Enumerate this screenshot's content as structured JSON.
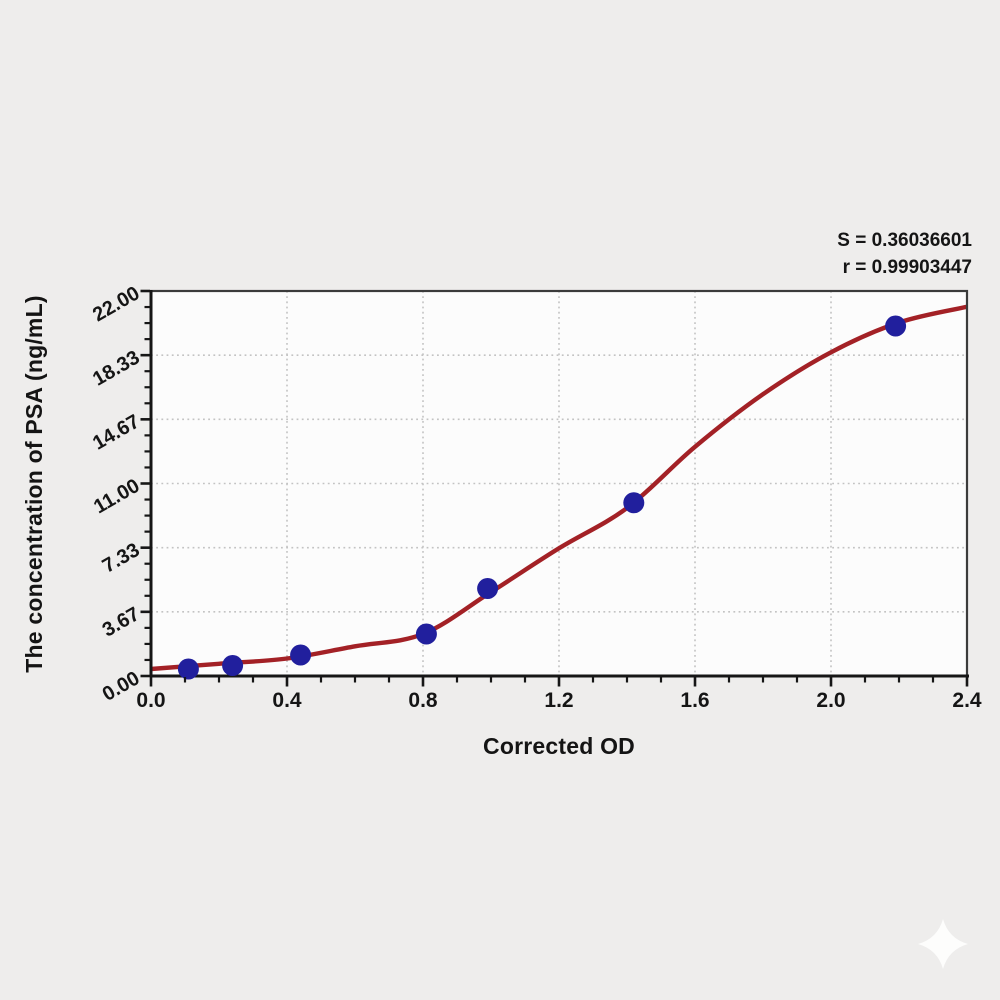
{
  "page": {
    "background_color": "#eeedec"
  },
  "annotation": {
    "s_label": "S = 0.36036601",
    "r_label": "r = 0.99903447"
  },
  "watermark": {
    "icon": "four-point-star-icon",
    "color": "#ffffff"
  },
  "chart_data": {
    "type": "scatter",
    "title": "",
    "xlabel": "Corrected OD",
    "ylabel": "The concentration of PSA (ng/mL)",
    "xlim": [
      0,
      2.4
    ],
    "ylim": [
      0,
      22
    ],
    "x_tick_labels": [
      "0.0",
      "0.4",
      "0.8",
      "1.2",
      "1.6",
      "2.0",
      "2.4"
    ],
    "x_tick_values": [
      0,
      0.4,
      0.8,
      1.2,
      1.6,
      2.0,
      2.4
    ],
    "x_minor_step": 0.1,
    "y_tick_labels": [
      "0.00",
      "3.67",
      "7.33",
      "11.00",
      "14.67",
      "18.33",
      "22.00"
    ],
    "y_tick_values": [
      0,
      3.67,
      7.33,
      11.0,
      14.67,
      18.33,
      22.0
    ],
    "y_minor_divisions": 4,
    "grid": {
      "show": true,
      "style": "dotted"
    },
    "legend": null,
    "points": [
      {
        "x": 0.11,
        "y": 0.4
      },
      {
        "x": 0.24,
        "y": 0.6
      },
      {
        "x": 0.44,
        "y": 1.2
      },
      {
        "x": 0.81,
        "y": 2.4
      },
      {
        "x": 0.99,
        "y": 5.0
      },
      {
        "x": 1.42,
        "y": 9.9
      },
      {
        "x": 2.19,
        "y": 20.0
      }
    ],
    "curve_fit": [
      {
        "x": 0.0,
        "y": 0.4
      },
      {
        "x": 0.2,
        "y": 0.7
      },
      {
        "x": 0.4,
        "y": 1.0
      },
      {
        "x": 0.6,
        "y": 1.7
      },
      {
        "x": 0.8,
        "y": 2.4
      },
      {
        "x": 1.0,
        "y": 4.8
      },
      {
        "x": 1.2,
        "y": 7.3
      },
      {
        "x": 1.4,
        "y": 9.6
      },
      {
        "x": 1.6,
        "y": 13.1
      },
      {
        "x": 1.8,
        "y": 16.1
      },
      {
        "x": 2.0,
        "y": 18.5
      },
      {
        "x": 2.2,
        "y": 20.2
      },
      {
        "x": 2.4,
        "y": 21.1
      }
    ],
    "fit_stats": {
      "S": 0.36036601,
      "r": 0.99903447
    },
    "colors": {
      "curve": "#a32126",
      "points": "#211f9d",
      "axis": "#161616",
      "frame": "#3b3b3b",
      "grid": "#c3c3c3",
      "plot_bg": "#fcfcfc",
      "text": "#151515"
    }
  }
}
